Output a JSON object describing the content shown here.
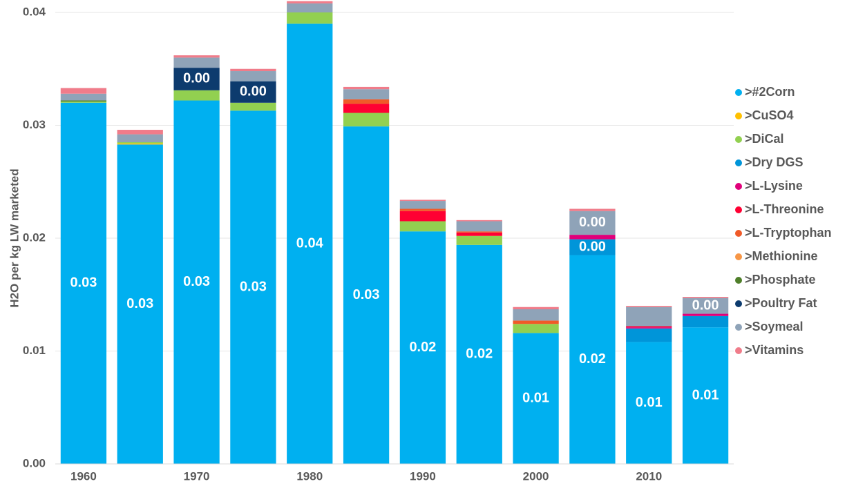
{
  "chart_data": {
    "type": "stacked_bar",
    "y_label": "H2O per kg LW marketed",
    "categories": [
      "1960",
      null,
      "1970",
      null,
      "1980",
      null,
      "1990",
      null,
      "2000",
      null,
      "2010",
      null
    ],
    "ylim": [
      0,
      0.04
    ],
    "yticks": [
      {
        "value": 0,
        "label": "0.00"
      },
      0.01,
      0.02,
      0.03,
      0.04
    ],
    "grid": true,
    "legend": "right",
    "series": [
      {
        "name": ">#2Corn",
        "color": "#00b0f0",
        "values": [
          0.032,
          0.0283,
          0.0322,
          0.0313,
          0.039,
          0.0299,
          0.0206,
          0.0194,
          0.0116,
          0.0185,
          0.0108,
          0.0121
        ],
        "value_labels": [
          "0.03",
          "0.03",
          "0.03",
          "0.03",
          "0.04",
          "0.03",
          "0.02",
          "0.02",
          "0.01",
          "0.02",
          "0.01",
          "0.01"
        ]
      },
      {
        "name": ">CuSO4",
        "color": "#ffc000",
        "values": [
          0,
          0.0001,
          0,
          0,
          0,
          0,
          0,
          0,
          0,
          0,
          0,
          0
        ]
      },
      {
        "name": ">DiCal",
        "color": "#92d050",
        "values": [
          0.0001,
          0.0001,
          0.0009,
          0.0007,
          0.001,
          0.0012,
          0.0009,
          0.0008,
          0.0008,
          0,
          0,
          0
        ]
      },
      {
        "name": ">Dry DGS",
        "color": "#0095d9",
        "values": [
          0,
          0,
          0,
          0,
          0,
          0,
          0,
          0,
          0,
          0.0014,
          0.0012,
          0.001
        ],
        "value_labels": [
          null,
          null,
          null,
          null,
          null,
          null,
          null,
          null,
          null,
          "0.00",
          null,
          null
        ]
      },
      {
        "name": ">L-Lysine",
        "color": "#e0007a",
        "values": [
          0,
          0,
          0,
          0,
          0,
          0,
          0,
          0,
          0,
          0.0004,
          0.0001,
          0.0002
        ]
      },
      {
        "name": ">L-Threonine",
        "color": "#ff0033",
        "values": [
          0,
          0,
          0,
          0,
          0,
          0.0008,
          0.0009,
          0.0003,
          0,
          0,
          0.0001,
          0
        ]
      },
      {
        "name": ">L-Tryptophan",
        "color": "#f05a28",
        "values": [
          0,
          0,
          0,
          0,
          0,
          0.0004,
          0.0002,
          0.0001,
          0.0003,
          0,
          0,
          0
        ]
      },
      {
        "name": ">Methionine",
        "color": "#f79646",
        "values": [
          0,
          0,
          0,
          0,
          0,
          0,
          0,
          0,
          0,
          0,
          0,
          0
        ]
      },
      {
        "name": ">Phosphate",
        "color": "#4f7f2a",
        "values": [
          0.0001,
          0,
          0,
          0,
          0,
          0,
          0,
          0,
          0,
          0,
          0,
          0
        ]
      },
      {
        "name": ">Poultry Fat",
        "color": "#0d3b6e",
        "values": [
          0,
          0,
          0.002,
          0.0019,
          0,
          0,
          0,
          0,
          0,
          0,
          0,
          0
        ],
        "value_labels": [
          null,
          null,
          "0.00",
          "0.00",
          null,
          null,
          null,
          null,
          null,
          null,
          null,
          null
        ]
      },
      {
        "name": ">Soymeal",
        "color": "#8fa3b8",
        "values": [
          0.0006,
          0.0007,
          0.0009,
          0.0009,
          0.0008,
          0.0009,
          0.0007,
          0.0009,
          0.001,
          0.0021,
          0.0017,
          0.0014
        ],
        "value_labels": [
          null,
          null,
          null,
          null,
          null,
          null,
          null,
          null,
          null,
          "0.00",
          null,
          "0.00"
        ]
      },
      {
        "name": ">Vitamins",
        "color": "#f07c8a",
        "values": [
          0.0005,
          0.0004,
          0.0002,
          0.0002,
          0.0002,
          0.0002,
          0.0001,
          0.0001,
          0.0002,
          0.0002,
          0.0001,
          0.0001
        ]
      }
    ]
  }
}
